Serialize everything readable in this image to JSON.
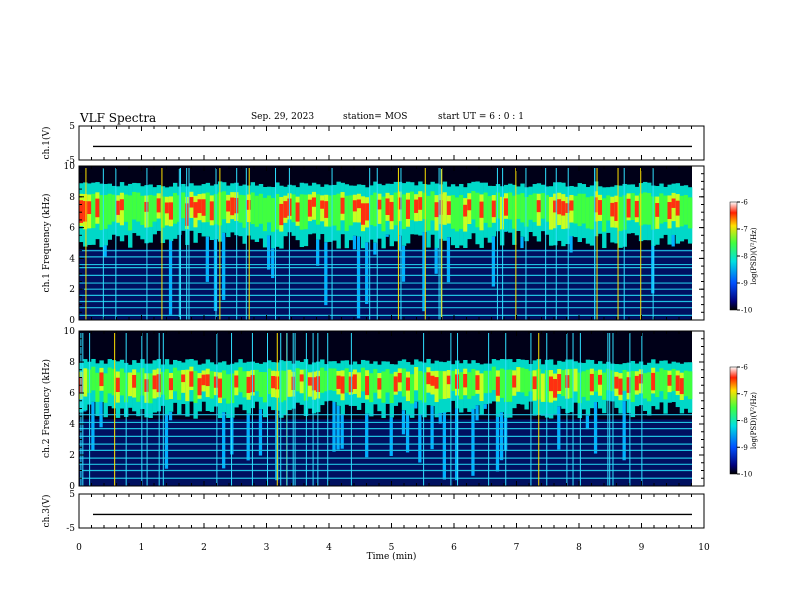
{
  "header": {
    "title": "VLF Spectra",
    "date": "Sep. 29, 2023",
    "station": "station= MOS",
    "start": "start  UT =   6 : 0  : 1"
  },
  "chart_data": [
    {
      "type": "line",
      "name": "ch1-waveform",
      "ylabel": "ch.1(V)",
      "ylim": [
        -5,
        5
      ],
      "yticks": [
        "5",
        "-5"
      ],
      "xlim": [
        0,
        10
      ],
      "trace_level": -1
    },
    {
      "type": "heatmap",
      "name": "ch1-spectrogram",
      "ylabel": "ch.1 Frequency (kHz)",
      "ylim": [
        0,
        10
      ],
      "yticks": [
        "0",
        "2",
        "4",
        "6",
        "8",
        "10"
      ],
      "xlim": [
        0,
        10
      ],
      "colorbar": {
        "label": "log(PSD)(V²/Hz)",
        "ticks": [
          "-6",
          "-7",
          "-8",
          "-9",
          "-10"
        ],
        "range": [
          -10,
          -6
        ]
      },
      "band_kHz": [
        5.8,
        9.0
      ],
      "lines_kHz": [
        0.3,
        0.8,
        1.2,
        1.6,
        2.0,
        2.4,
        2.9,
        3.4,
        3.6,
        4.1,
        4.5
      ]
    },
    {
      "type": "heatmap",
      "name": "ch2-spectrogram",
      "ylabel": "ch.2 Frequency (kHz)",
      "ylim": [
        0,
        10
      ],
      "yticks": [
        "0",
        "2",
        "4",
        "6",
        "8",
        "10"
      ],
      "xlim": [
        0,
        10
      ],
      "colorbar": {
        "label": "log(PSD)(V²/Hz)",
        "ticks": [
          "-6",
          "-7",
          "-8",
          "-9",
          "-10"
        ],
        "range": [
          -10,
          -6
        ]
      },
      "band_kHz": [
        5.5,
        8.2
      ],
      "lines_kHz": [
        0.5,
        1.0,
        1.4,
        1.8,
        2.3,
        2.7,
        3.2,
        3.7,
        4.1,
        4.6
      ]
    },
    {
      "type": "line",
      "name": "ch3-waveform",
      "ylabel": "ch.3(V)",
      "ylim": [
        -5,
        5
      ],
      "yticks": [
        "5",
        "-5"
      ],
      "xlim": [
        0,
        10
      ],
      "trace_level": -1
    }
  ],
  "xaxis": {
    "label": "Time  (min)",
    "ticks": [
      "0",
      "1",
      "2",
      "3",
      "4",
      "5",
      "6",
      "7",
      "8",
      "9",
      "10"
    ]
  }
}
